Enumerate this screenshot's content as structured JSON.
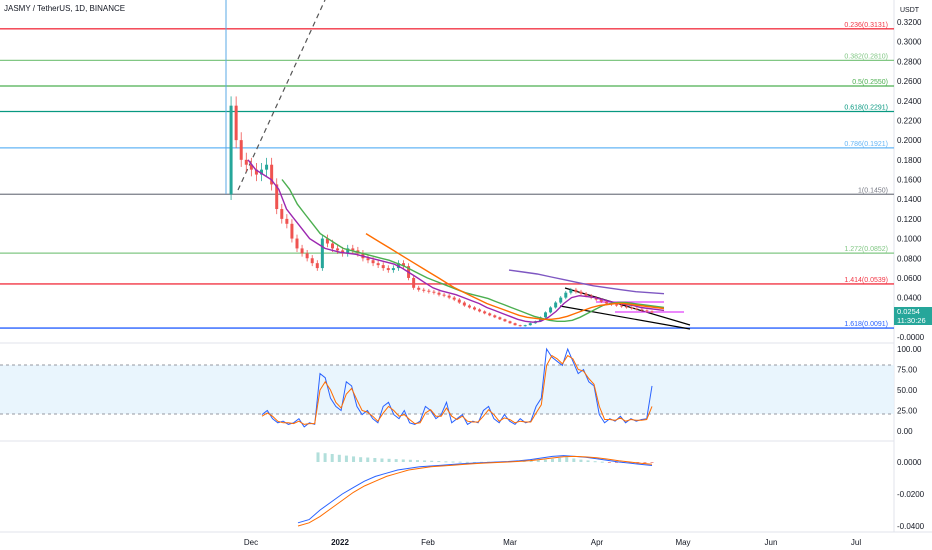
{
  "header": {
    "title": "JASMY / TetherUS, 1D, BINANCE"
  },
  "price_panel": {
    "unit_label": "USDT",
    "last_price": "0.0254",
    "countdown": "11:30:26",
    "colors": {
      "up": "#26a69a",
      "down": "#ef5350",
      "ema_fast": "#9c27b0",
      "ema_mid": "#4caf50",
      "ema_slow": "#ff6d00",
      "ema_long": "#7e57c2"
    }
  },
  "chart_data": [
    {
      "type": "line",
      "panel": "price",
      "y_ticks": [
        "0.3200",
        "0.3000",
        "0.2800",
        "0.2600",
        "0.2400",
        "0.2200",
        "0.2000",
        "0.1800",
        "0.1600",
        "0.1400",
        "0.1200",
        "0.1000",
        "0.0800",
        "0.0600",
        "0.0400",
        "0.0200",
        "-0.0000"
      ],
      "ylim": [
        -0.002,
        0.33
      ],
      "x_ticks": [
        "Dec",
        "2022",
        "Feb",
        "Mar",
        "Apr",
        "May",
        "Jun",
        "Jul"
      ],
      "fib_levels": [
        {
          "label": "0.236(0.3131)",
          "value": 0.3131,
          "color": "#f23645"
        },
        {
          "label": "0.382(0.2810)",
          "value": 0.281,
          "color": "#81c784"
        },
        {
          "label": "0.5(0.2550)",
          "value": 0.255,
          "color": "#4caf50"
        },
        {
          "label": "0.618(0.2291)",
          "value": 0.2291,
          "color": "#089981"
        },
        {
          "label": "0.786(0.1921)",
          "value": 0.1921,
          "color": "#64b5f6"
        },
        {
          "label": "1(0.1450)",
          "value": 0.145,
          "color": "#787b86"
        },
        {
          "label": "1.272(0.0852)",
          "value": 0.0852,
          "color": "#81c784"
        },
        {
          "label": "1.414(0.0539)",
          "value": 0.0539,
          "color": "#f23645"
        },
        {
          "label": "1.618(0.0091)",
          "value": 0.0091,
          "color": "#2962ff"
        }
      ],
      "series": [
        {
          "values": [
            0.145,
            0.235,
            0.2,
            0.18,
            0.175,
            0.17,
            0.165,
            0.17,
            0.175,
            0.155,
            0.13,
            0.12,
            0.115,
            0.1,
            0.09,
            0.085,
            0.08,
            0.075,
            0.07,
            0.1,
            0.095,
            0.09,
            0.088,
            0.085,
            0.09,
            0.088,
            0.085,
            0.08,
            0.078,
            0.075,
            0.073,
            0.07,
            0.068,
            0.07,
            0.075,
            0.072,
            0.06,
            0.05,
            0.048,
            0.047,
            0.046,
            0.045,
            0.043,
            0.042,
            0.04,
            0.038,
            0.035,
            0.032,
            0.03,
            0.028,
            0.026,
            0.024,
            0.022,
            0.02,
            0.018,
            0.016,
            0.014,
            0.012,
            0.011,
            0.012,
            0.014,
            0.016,
            0.02,
            0.025,
            0.03,
            0.035,
            0.04,
            0.045,
            0.048,
            0.046,
            0.044,
            0.042,
            0.04,
            0.038,
            0.036,
            0.034,
            0.033,
            0.032,
            0.031,
            0.03,
            0.029,
            0.028,
            0.027,
            0.026,
            0.0254
          ]
        },
        {
          "values": [
            0.18,
            0.17,
            0.165,
            0.16,
            0.15,
            0.13,
            0.12,
            0.11,
            0.1,
            0.095,
            0.09,
            0.088,
            0.086,
            0.085,
            0.084,
            0.082,
            0.08,
            0.078,
            0.076,
            0.074,
            0.07,
            0.065,
            0.06,
            0.055,
            0.05,
            0.047,
            0.045,
            0.043,
            0.04,
            0.037,
            0.034,
            0.03,
            0.027,
            0.024,
            0.021,
            0.018,
            0.016,
            0.015,
            0.016,
            0.02,
            0.026,
            0.034,
            0.04,
            0.042,
            0.041,
            0.04,
            0.038,
            0.036,
            0.034,
            0.033,
            0.032,
            0.03,
            0.029,
            0.028,
            0.027
          ]
        },
        {
          "values": [
            0.16,
            0.15,
            0.135,
            0.125,
            0.115,
            0.105,
            0.1,
            0.095,
            0.09,
            0.088,
            0.086,
            0.084,
            0.082,
            0.08,
            0.078,
            0.075,
            0.072,
            0.068,
            0.064,
            0.06,
            0.057,
            0.054,
            0.051,
            0.048,
            0.045,
            0.043,
            0.041,
            0.039,
            0.036,
            0.033,
            0.03,
            0.027,
            0.024,
            0.021,
            0.019,
            0.017,
            0.016,
            0.016,
            0.017,
            0.02,
            0.024,
            0.028,
            0.032,
            0.034,
            0.035,
            0.035,
            0.034,
            0.033,
            0.032,
            0.031,
            0.03
          ]
        },
        {
          "values": [
            0.105,
            0.1,
            0.095,
            0.09,
            0.085,
            0.08,
            0.075,
            0.07,
            0.065,
            0.06,
            0.055,
            0.05,
            0.046,
            0.042,
            0.038,
            0.034,
            0.031,
            0.028,
            0.025,
            0.022,
            0.02,
            0.019,
            0.018,
            0.018,
            0.019,
            0.021,
            0.024,
            0.027,
            0.03,
            0.032,
            0.033,
            0.034,
            0.034,
            0.033,
            0.032,
            0.031,
            0.03,
            0.029
          ]
        },
        {
          "values": [
            0.068,
            0.066,
            0.064,
            0.061,
            0.058,
            0.055,
            0.052,
            0.05,
            0.048,
            0.046,
            0.045,
            0.044
          ]
        }
      ]
    },
    {
      "type": "line",
      "panel": "stoch_rsi",
      "y_ticks": [
        "100.00",
        "75.00",
        "50.00",
        "25.00",
        "0.00"
      ],
      "ylim": [
        -5,
        110
      ],
      "bands": [
        80,
        20
      ],
      "series": [
        {
          "values": [
            20,
            25,
            15,
            10,
            12,
            8,
            10,
            15,
            5,
            10,
            8,
            70,
            65,
            40,
            30,
            25,
            60,
            55,
            30,
            20,
            25,
            15,
            10,
            30,
            35,
            20,
            15,
            25,
            10,
            8,
            12,
            30,
            25,
            15,
            20,
            35,
            10,
            15,
            20,
            8,
            12,
            10,
            25,
            30,
            15,
            10,
            20,
            12,
            8,
            15,
            10,
            12,
            30,
            40,
            100,
            90,
            85,
            80,
            100,
            85,
            70,
            75,
            60,
            55,
            20,
            10,
            15,
            12,
            18,
            10,
            15,
            12,
            14,
            15,
            55
          ]
        },
        {
          "values": [
            18,
            22,
            18,
            12,
            10,
            10,
            9,
            12,
            8,
            9,
            9,
            50,
            60,
            50,
            35,
            28,
            45,
            52,
            38,
            25,
            23,
            18,
            12,
            22,
            30,
            25,
            18,
            20,
            14,
            9,
            10,
            22,
            26,
            18,
            18,
            28,
            18,
            14,
            18,
            12,
            11,
            11,
            18,
            26,
            20,
            12,
            16,
            14,
            10,
            12,
            11,
            11,
            22,
            32,
            80,
            92,
            88,
            82,
            92,
            88,
            75,
            73,
            64,
            57,
            30,
            14,
            14,
            13,
            16,
            12,
            14,
            13,
            13,
            14,
            30
          ]
        }
      ]
    },
    {
      "type": "bar",
      "panel": "macd",
      "y_ticks": [
        "0.0000",
        "-0.0200",
        "-0.0400"
      ],
      "ylim": [
        -0.045,
        0.008
      ],
      "series": [
        {
          "values": [
            -0.038,
            -0.036,
            -0.03,
            -0.025,
            -0.02,
            -0.016,
            -0.012,
            -0.009,
            -0.007,
            -0.005,
            -0.004,
            -0.003,
            -0.0025,
            -0.002,
            -0.0015,
            -0.001,
            -0.0006,
            -0.0003,
            0.0,
            0.0003,
            0.0008,
            0.0015,
            0.0025,
            0.0035,
            0.004,
            0.0035,
            0.003,
            0.002,
            0.001,
            0.0,
            -0.0007,
            -0.0015,
            -0.0022
          ]
        },
        {
          "values": [
            -0.04,
            -0.038,
            -0.034,
            -0.029,
            -0.024,
            -0.019,
            -0.015,
            -0.012,
            -0.009,
            -0.007,
            -0.005,
            -0.004,
            -0.003,
            -0.0025,
            -0.002,
            -0.0015,
            -0.001,
            -0.0006,
            -0.0003,
            0.0,
            0.0004,
            0.0009,
            0.0016,
            0.0025,
            0.0033,
            0.0035,
            0.0032,
            0.0026,
            0.0018,
            0.0008,
            0.0,
            -0.0008,
            -0.0014
          ]
        },
        {
          "values": [
            0.006,
            0.0055,
            0.005,
            0.0045,
            0.004,
            0.0035,
            0.003,
            0.0028,
            0.0025,
            0.0022,
            0.002,
            0.0018,
            0.0016,
            0.0014,
            0.0012,
            0.001,
            0.0008,
            0.0006,
            0.0004,
            0.0003,
            0.0002,
            0.0001,
            0.0,
            0.0001,
            0.0002,
            0.0003,
            0.0004,
            0.0005,
            0.0006,
            0.0008,
            0.001,
            0.0012,
            0.0015,
            0.002,
            0.0025,
            0.003,
            0.0022,
            0.0015,
            0.001,
            0.0005,
            0.0002,
            -0.0002,
            -0.0004,
            -0.0006,
            -0.0008,
            -0.001,
            -0.0008,
            -0.0006
          ]
        }
      ]
    }
  ]
}
